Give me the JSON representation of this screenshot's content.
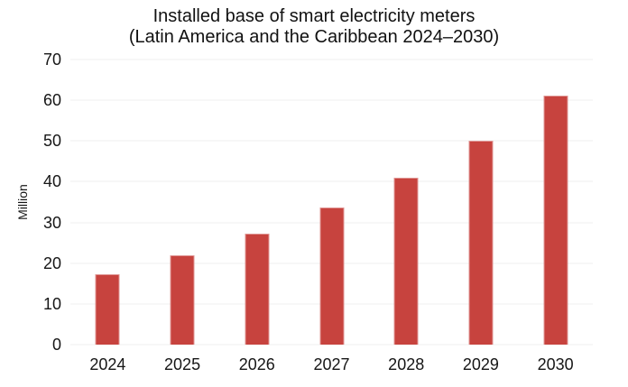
{
  "chart": {
    "title_line1": "Installed base of smart electricity meters",
    "title_line2": "(Latin America and the Caribbean 2024–2030)",
    "ylabel": "Million"
  },
  "chart_data": {
    "type": "bar",
    "title": "Installed base of smart electricity meters (Latin America and the Caribbean 2024–2030)",
    "categories": [
      "2024",
      "2025",
      "2026",
      "2027",
      "2028",
      "2029",
      "2030"
    ],
    "values": [
      17.3,
      22,
      27.3,
      33.6,
      41,
      50,
      61.2
    ],
    "xlabel": "",
    "ylabel": "Million",
    "ylim": [
      0,
      70
    ],
    "yticks": [
      0,
      10,
      20,
      30,
      40,
      50,
      60,
      70
    ],
    "grid": true,
    "legend": false,
    "bar_color": "#c7433e",
    "grid_color": "#efefef",
    "text_color": "#161616",
    "background": "#ffffff"
  }
}
